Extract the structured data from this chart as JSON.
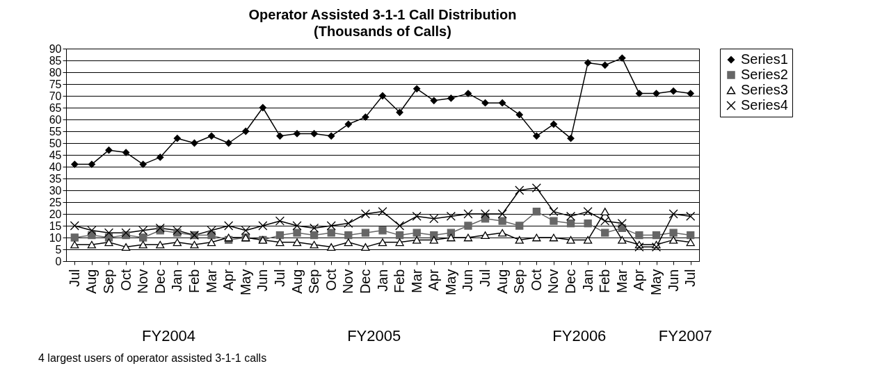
{
  "chart_data": {
    "type": "line",
    "title": "Operator Assisted 3-1-1 Call Distribution",
    "subtitle": "(Thousands of Calls)",
    "categories": [
      "Jul",
      "Aug",
      "Sep",
      "Oct",
      "Nov",
      "Dec",
      "Jan",
      "Feb",
      "Mar",
      "Apr",
      "May",
      "Jun",
      "Jul",
      "Aug",
      "Sep",
      "Oct",
      "Nov",
      "Dec",
      "Jan",
      "Feb",
      "Mar",
      "Apr",
      "May",
      "Jun",
      "Jul",
      "Aug",
      "Sep",
      "Oct",
      "Nov",
      "Dec",
      "Jan",
      "Feb",
      "Mar",
      "Apr",
      "May",
      "Jun",
      "Jul"
    ],
    "series": [
      {
        "name": "Series1",
        "color": "#000000",
        "marker": "diamond",
        "values": [
          41,
          41,
          47,
          46,
          41,
          44,
          52,
          50,
          53,
          50,
          55,
          65,
          53,
          54,
          54,
          53,
          58,
          61,
          70,
          63,
          73,
          68,
          69,
          71,
          67,
          67,
          62,
          53,
          58,
          52,
          84,
          83,
          86,
          71,
          71,
          72,
          71
        ]
      },
      {
        "name": "Series2",
        "color": "#666666",
        "marker": "square",
        "values": [
          10,
          11,
          10,
          11,
          10,
          13,
          12,
          11,
          11,
          9,
          10,
          9,
          11,
          12,
          11,
          12,
          11,
          12,
          13,
          11,
          12,
          11,
          12,
          15,
          18,
          17,
          15,
          21,
          17,
          16,
          16,
          12,
          14,
          11,
          11,
          12,
          11
        ]
      },
      {
        "name": "Series3",
        "color": "#000000",
        "marker": "triangle",
        "values": [
          7,
          7,
          8,
          6,
          7,
          7,
          8,
          7,
          8,
          10,
          10,
          9,
          8,
          8,
          7,
          6,
          8,
          6,
          8,
          8,
          9,
          9,
          10,
          10,
          11,
          12,
          9,
          10,
          10,
          9,
          9,
          21,
          9,
          7,
          7,
          9,
          8
        ]
      },
      {
        "name": "Series4",
        "color": "#000000",
        "marker": "cross",
        "values": [
          15,
          13,
          12,
          12,
          13,
          14,
          13,
          11,
          13,
          15,
          13,
          15,
          17,
          15,
          14,
          15,
          16,
          20,
          21,
          15,
          19,
          18,
          19,
          20,
          20,
          20,
          30,
          31,
          21,
          19,
          21,
          17,
          16,
          6,
          6,
          20,
          19
        ]
      }
    ],
    "ylim": [
      0,
      90
    ],
    "yticks": [
      0,
      5,
      10,
      15,
      20,
      25,
      30,
      35,
      40,
      45,
      50,
      55,
      60,
      65,
      70,
      75,
      80,
      85,
      90
    ],
    "grid": "y",
    "legend": "right",
    "annotations": [
      "FY2004",
      "FY2005",
      "FY2006",
      "FY2007",
      "4 largest users of operator assisted 3-1-1 calls"
    ]
  }
}
